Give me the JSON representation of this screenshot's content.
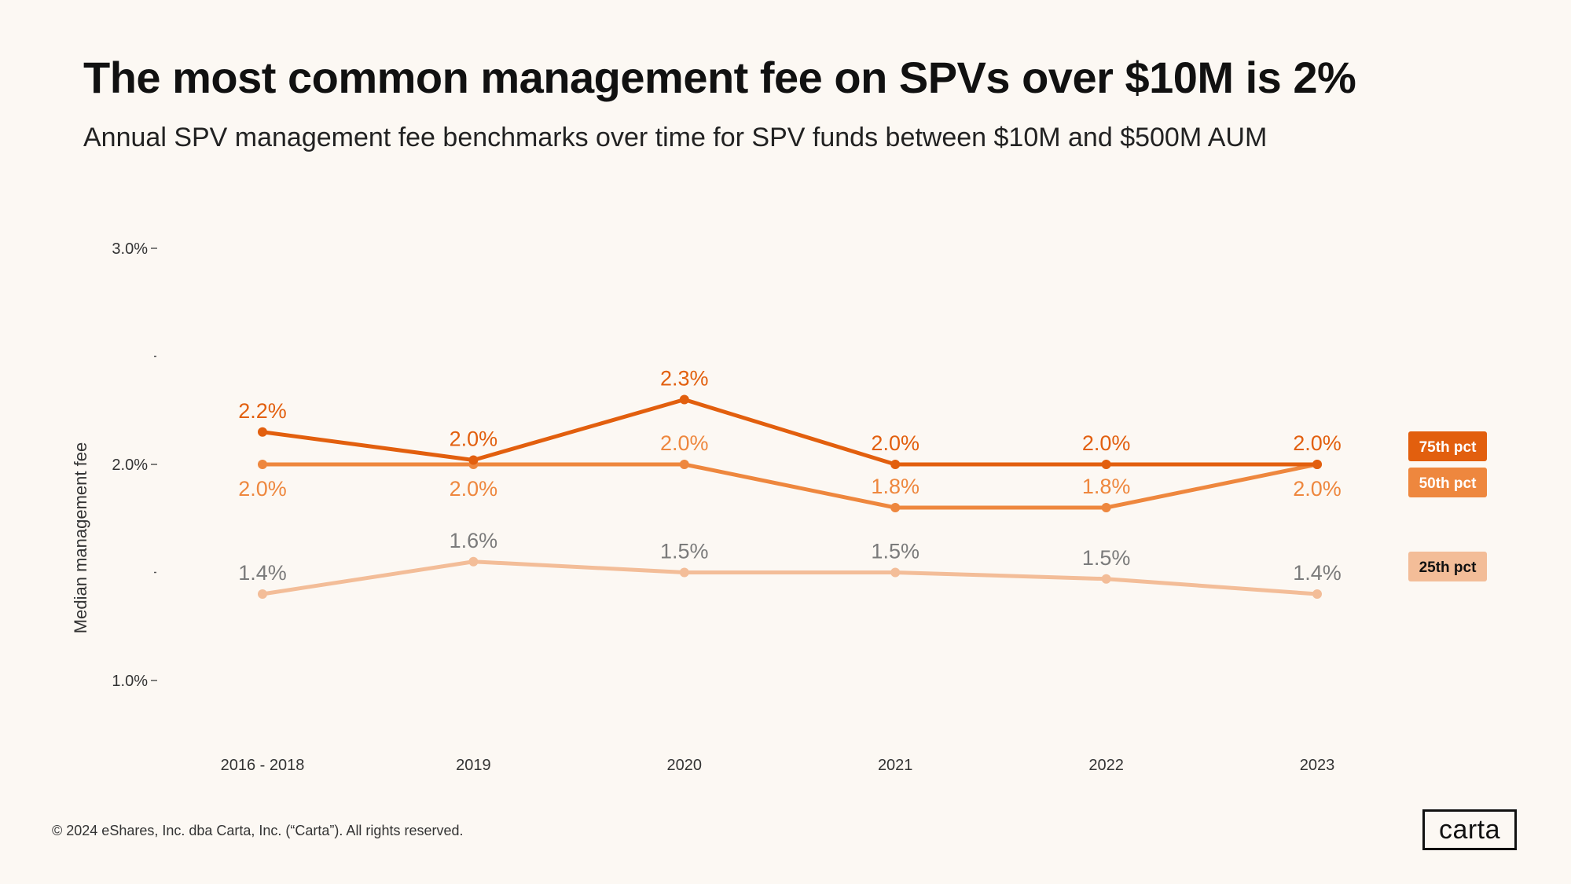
{
  "title": "The most common management fee on SPVs over $10M is 2%",
  "subtitle": "Annual SPV management fee benchmarks over time for SPV funds between $10M and $500M AUM",
  "footer": "© 2024 eShares, Inc. dba Carta, Inc. (“Carta”). All rights reserved.",
  "logo_text": "carta",
  "colors": {
    "background": "#fcf8f3",
    "p75": "#e25f0e",
    "p50": "#ee873e",
    "p25": "#f3bd98",
    "label_gray": "#7b7b7b"
  },
  "chart_data": {
    "type": "line",
    "title": "The most common management fee on SPVs over $10M is 2%",
    "xlabel": "",
    "ylabel": "Median management fee",
    "ylim": [
      0.8,
      3.0
    ],
    "yticks": [
      {
        "value": 3.0,
        "label": "3.0%"
      },
      {
        "value": 2.5,
        "label": ""
      },
      {
        "value": 2.0,
        "label": "2.0%"
      },
      {
        "value": 1.5,
        "label": ""
      },
      {
        "value": 1.0,
        "label": "1.0%"
      }
    ],
    "categories": [
      "2016 - 2018",
      "2019",
      "2020",
      "2021",
      "2022",
      "2023"
    ],
    "series": [
      {
        "name": "75th pct",
        "values": [
          2.15,
          2.02,
          2.3,
          2.0,
          2.0,
          2.0
        ],
        "labels": [
          "2.2%",
          "2.0%",
          "2.3%",
          "2.0%",
          "2.0%",
          "2.0%"
        ],
        "label_pos": [
          "above",
          "above",
          "above",
          "above",
          "above",
          "above"
        ],
        "color": "#e25f0e",
        "label_color": "#e25f0e"
      },
      {
        "name": "50th pct",
        "values": [
          2.0,
          2.0,
          2.0,
          1.8,
          1.8,
          2.0
        ],
        "labels": [
          "2.0%",
          "2.0%",
          "2.0%",
          "1.8%",
          "1.8%",
          "2.0%"
        ],
        "label_pos": [
          "below",
          "below",
          "above",
          "above",
          "above",
          "below"
        ],
        "color": "#ee873e",
        "label_color": "#ee873e"
      },
      {
        "name": "25th pct",
        "values": [
          1.4,
          1.55,
          1.5,
          1.5,
          1.47,
          1.4
        ],
        "labels": [
          "1.4%",
          "1.6%",
          "1.5%",
          "1.5%",
          "1.5%",
          "1.4%"
        ],
        "label_pos": [
          "above",
          "above",
          "above",
          "above",
          "above",
          "above"
        ],
        "color": "#f3bd98",
        "label_color": "#7b7b7b"
      }
    ],
    "legend": [
      {
        "label": "75th pct",
        "bg": "#e25f0e",
        "fg": "#ffffff"
      },
      {
        "label": "50th pct",
        "bg": "#ee873e",
        "fg": "#ffffff"
      },
      {
        "label": "25th pct",
        "bg": "#f3bd98",
        "fg": "#111111"
      }
    ],
    "legend_position": "right"
  }
}
